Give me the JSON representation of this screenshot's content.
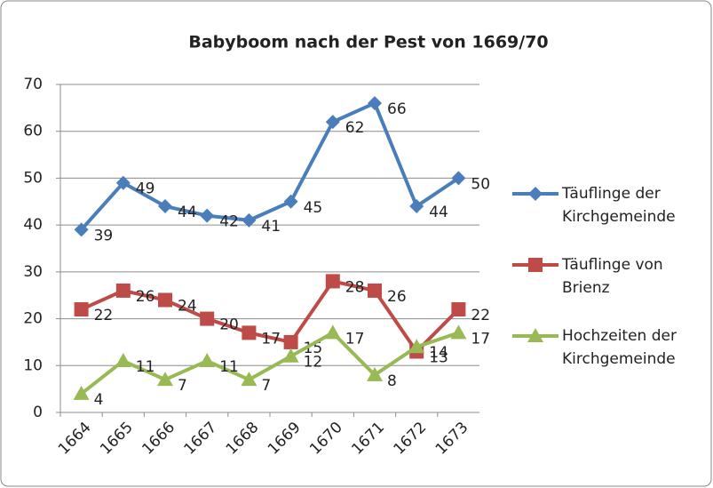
{
  "chart_data": {
    "type": "line",
    "title": "Babyboom nach der Pest von 1669/70",
    "categories": [
      "1664",
      "1665",
      "1666",
      "1667",
      "1668",
      "1669",
      "1670",
      "1671",
      "1672",
      "1673"
    ],
    "series": [
      {
        "name": "Täuflinge der Kirchgemeinde",
        "color": "#4a7ebb",
        "marker": "diamond",
        "values": [
          39,
          49,
          44,
          42,
          41,
          45,
          62,
          66,
          44,
          50
        ]
      },
      {
        "name": "Täuflinge von Brienz",
        "color": "#be4b48",
        "marker": "square",
        "values": [
          22,
          26,
          24,
          20,
          17,
          15,
          28,
          26,
          13,
          22
        ]
      },
      {
        "name": "Hochzeiten der Kirchgemeinde",
        "color": "#98b954",
        "marker": "triangle",
        "values": [
          4,
          11,
          7,
          11,
          7,
          12,
          17,
          8,
          14,
          17
        ]
      }
    ],
    "ylim": [
      0,
      70
    ],
    "yticks": [
      0,
      10,
      20,
      30,
      40,
      50,
      60,
      70
    ],
    "grid": true,
    "legend": "right"
  }
}
